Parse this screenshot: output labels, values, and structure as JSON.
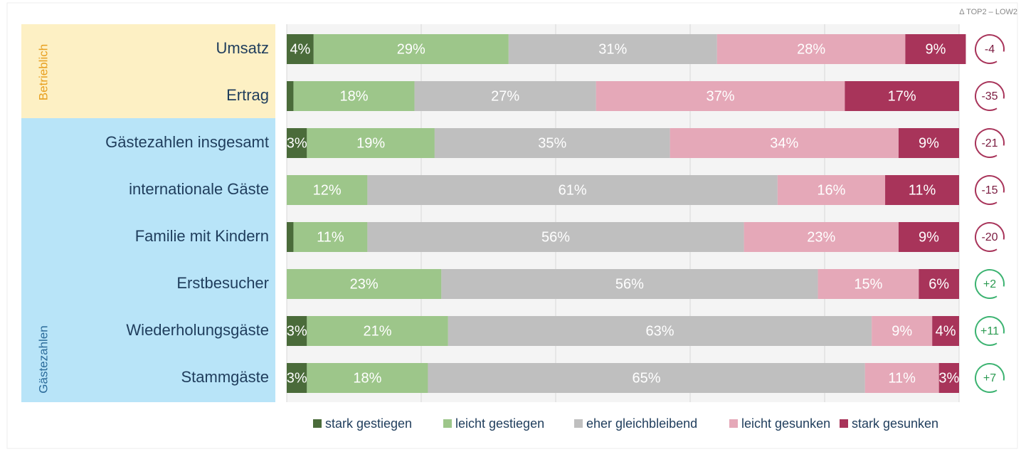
{
  "chart_data": {
    "type": "bar",
    "orientation": "horizontal",
    "stacked": true,
    "categories": [
      "Umsatz",
      "Ertrag",
      "Gästezahlen insgesamt",
      "internationale Gäste",
      "Familie mit Kindern",
      "Erstbesucher",
      "Wiederholungsgäste",
      "Stammgäste"
    ],
    "groups": [
      {
        "name": "Betrieblich",
        "color": "#fdf0c4",
        "text_color": "#e8a020",
        "size": 2
      },
      {
        "name": "Gästezahlen",
        "color": "#b8e4f8",
        "text_color": "#2a6a9a",
        "size": 6
      }
    ],
    "series": [
      {
        "name": "stark gestiegen",
        "color": "#4a6b3a",
        "values": [
          4,
          1,
          3,
          0,
          1,
          0,
          3,
          3
        ],
        "value_labels": [
          "4%",
          null,
          "3%",
          null,
          null,
          null,
          "3%",
          "3%"
        ]
      },
      {
        "name": "leicht gestiegen",
        "color": "#9dc68a",
        "values": [
          29,
          18,
          19,
          12,
          11,
          23,
          21,
          18
        ],
        "value_labels": [
          "29%",
          "18%",
          "19%",
          "12%",
          "11%",
          "23%",
          "21%",
          "18%"
        ]
      },
      {
        "name": "eher gleichbleibend",
        "color": "#bfbfbf",
        "values": [
          31,
          27,
          35,
          61,
          56,
          56,
          63,
          65
        ],
        "value_labels": [
          "31%",
          "27%",
          "35%",
          "61%",
          "56%",
          "56%",
          "63%",
          "65%"
        ]
      },
      {
        "name": "leicht gesunken",
        "color": "#e5a8b8",
        "values": [
          28,
          37,
          34,
          16,
          23,
          15,
          9,
          11
        ],
        "value_labels": [
          "28%",
          "37%",
          "34%",
          "16%",
          "23%",
          "15%",
          "9%",
          "11%"
        ]
      },
      {
        "name": "stark gesunken",
        "color": "#a8345a",
        "values": [
          9,
          17,
          9,
          11,
          9,
          6,
          4,
          3
        ],
        "value_labels": [
          "9%",
          "17%",
          "9%",
          "11%",
          "9%",
          "6%",
          "4%",
          "3%"
        ]
      }
    ],
    "xlim": [
      0,
      100
    ],
    "xticks": [
      0,
      20,
      40,
      60,
      80,
      100
    ],
    "grid": true,
    "legend": "bottom",
    "delta_title": "Δ TOP2 – LOW2",
    "deltas": [
      -4,
      -35,
      -21,
      -15,
      -20,
      {
        "value": 2,
        "label": "+2"
      },
      {
        "value": 11,
        "label": "+11"
      },
      {
        "value": 7,
        "label": "+7"
      }
    ],
    "delta_colors": {
      "positive": "#3cb371",
      "negative": "#a8345a",
      "positive_text": "#2a9a50",
      "negative_text": "#7a1a3f"
    }
  }
}
